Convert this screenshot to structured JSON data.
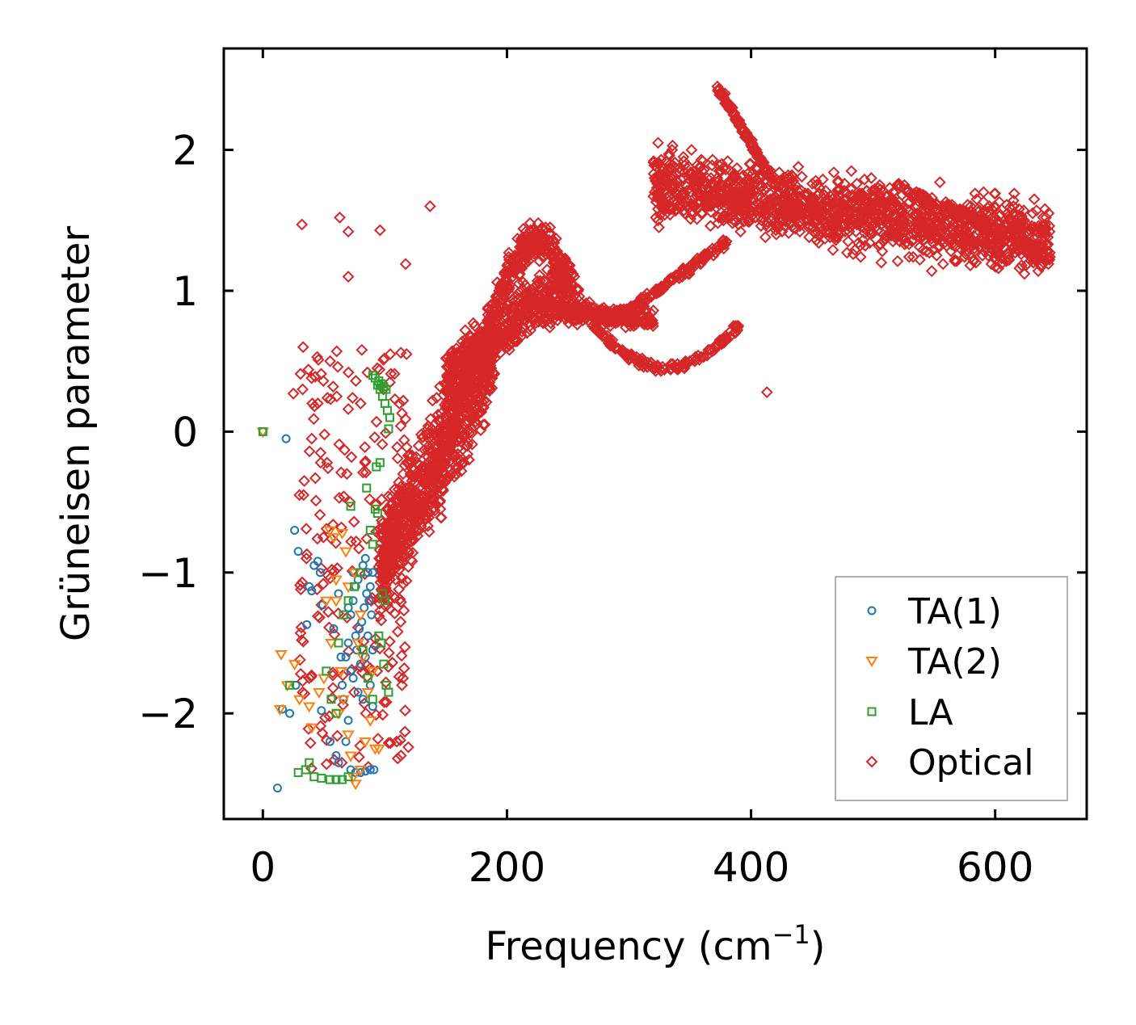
{
  "chart_data": {
    "type": "scatter",
    "title": "",
    "xlabel": "Frequency (cm",
    "xlabel_sup": "−1",
    "xlabel_end": ")",
    "ylabel": "Grüneisen parameter",
    "xlim": [
      -32,
      675
    ],
    "ylim": [
      -2.75,
      2.72
    ],
    "x_ticks": [
      0,
      200,
      400,
      600
    ],
    "x_tick_labels": [
      "0",
      "200",
      "400",
      "600"
    ],
    "y_ticks": [
      -2,
      -1,
      0,
      1,
      2
    ],
    "y_tick_labels": [
      "−2",
      "−1",
      "0",
      "1",
      "2"
    ],
    "legend_position": "lower-right",
    "series": [
      {
        "name": "TA(1)",
        "marker": "circle",
        "color": "#1f77b4",
        "points": [
          [
            0,
            0
          ],
          [
            19,
            -0.05
          ],
          [
            26,
            -0.7
          ],
          [
            29,
            -0.85
          ],
          [
            36,
            -1.37
          ],
          [
            38,
            -1.1
          ],
          [
            40,
            -1.13
          ],
          [
            42,
            -0.95
          ],
          [
            45,
            -0.92
          ],
          [
            47,
            -1.0
          ],
          [
            49,
            -1.23
          ],
          [
            12,
            -2.53
          ],
          [
            16,
            -1.97
          ],
          [
            22,
            -2.0
          ],
          [
            27,
            -1.8
          ],
          [
            48,
            -1.98
          ],
          [
            55,
            -2.2
          ],
          [
            60,
            -2.3
          ],
          [
            62,
            -2.35
          ],
          [
            65,
            -1.8
          ],
          [
            68,
            -1.6
          ],
          [
            70,
            -1.5
          ],
          [
            72,
            -1.3
          ],
          [
            74,
            -1.2
          ],
          [
            76,
            -1.1
          ],
          [
            78,
            -1.05
          ],
          [
            80,
            -1.0
          ],
          [
            82,
            -0.95
          ],
          [
            84,
            -0.9
          ],
          [
            86,
            -1.0
          ],
          [
            88,
            -1.1
          ],
          [
            90,
            -1.0
          ],
          [
            66,
            -1.9
          ],
          [
            70,
            -2.05
          ],
          [
            74,
            -1.75
          ],
          [
            77,
            -1.55
          ],
          [
            79,
            -1.4
          ],
          [
            81,
            -1.35
          ],
          [
            83,
            -1.25
          ],
          [
            85,
            -1.15
          ],
          [
            87,
            -1.2
          ],
          [
            89,
            -1.3
          ],
          [
            72,
            -1.7
          ],
          [
            76,
            -1.45
          ],
          [
            80,
            -1.65
          ],
          [
            84,
            -1.6
          ],
          [
            88,
            -1.8
          ],
          [
            90,
            -1.95
          ],
          [
            68,
            -2.2
          ],
          [
            72,
            -2.4
          ],
          [
            76,
            -2.42
          ],
          [
            80,
            -2.42
          ],
          [
            84,
            -2.41
          ],
          [
            88,
            -2.4
          ],
          [
            91,
            -2.4
          ],
          [
            78,
            -1.85
          ],
          [
            82,
            -1.9
          ],
          [
            70,
            -1.25
          ],
          [
            74,
            -1.0
          ],
          [
            62,
            -1.15
          ],
          [
            58,
            -1.4
          ],
          [
            64,
            -1.6
          ],
          [
            86,
            -1.45
          ],
          [
            90,
            -1.55
          ]
        ]
      },
      {
        "name": "TA(2)",
        "marker": "triangle-down",
        "color": "#ff7f0e",
        "points": [
          [
            0,
            0
          ],
          [
            14,
            -1.97
          ],
          [
            15,
            -1.58
          ],
          [
            20,
            -1.8
          ],
          [
            26,
            -1.65
          ],
          [
            30,
            -1.9
          ],
          [
            38,
            -1.95
          ],
          [
            40,
            -2.1
          ],
          [
            46,
            -1.85
          ],
          [
            50,
            -1.75
          ],
          [
            55,
            -0.7
          ],
          [
            58,
            -0.75
          ],
          [
            60,
            -1.05
          ],
          [
            65,
            -0.72
          ],
          [
            68,
            -0.85
          ],
          [
            70,
            -1.1
          ],
          [
            75,
            -1.0
          ],
          [
            64,
            -1.7
          ],
          [
            66,
            -1.9
          ],
          [
            70,
            -2.15
          ],
          [
            72,
            -2.3
          ],
          [
            76,
            -2.5
          ],
          [
            80,
            -2.4
          ],
          [
            84,
            -2.2
          ],
          [
            88,
            -2.05
          ],
          [
            92,
            -2.25
          ],
          [
            95,
            -2.25
          ],
          [
            78,
            -1.5
          ],
          [
            80,
            -1.3
          ],
          [
            82,
            -1.6
          ],
          [
            60,
            -1.2
          ],
          [
            56,
            -1.5
          ],
          [
            52,
            -1.2
          ],
          [
            62,
            -2.0
          ],
          [
            74,
            -2.45
          ],
          [
            86,
            -1.85
          ],
          [
            90,
            -1.7
          ]
        ]
      },
      {
        "name": "LA",
        "marker": "square",
        "color": "#2ca02c",
        "points": [
          [
            0,
            0
          ],
          [
            22,
            -1.8
          ],
          [
            29,
            -2.42
          ],
          [
            35,
            -2.4
          ],
          [
            38,
            -2.35
          ],
          [
            42,
            -2.45
          ],
          [
            48,
            -2.46
          ],
          [
            55,
            -2.47
          ],
          [
            60,
            -2.47
          ],
          [
            65,
            -2.47
          ],
          [
            70,
            -2.45
          ],
          [
            52,
            -1.7
          ],
          [
            56,
            -1.9
          ],
          [
            60,
            -2.0
          ],
          [
            62,
            -1.5
          ],
          [
            66,
            -1.3
          ],
          [
            70,
            -1.2
          ],
          [
            72,
            -0.53
          ],
          [
            75,
            -1.1
          ],
          [
            80,
            -1.0
          ],
          [
            85,
            -0.4
          ],
          [
            88,
            -0.7
          ],
          [
            90,
            -0.8
          ],
          [
            92,
            -0.55
          ],
          [
            94,
            -0.58
          ],
          [
            96,
            -0.22
          ],
          [
            98,
            -1.15
          ],
          [
            100,
            -1.2
          ],
          [
            93,
            -0.25
          ],
          [
            95,
            -1.45
          ],
          [
            97,
            -1.5
          ],
          [
            99,
            -1.65
          ],
          [
            101,
            -1.8
          ],
          [
            103,
            -1.85
          ],
          [
            90,
            0.4
          ],
          [
            92,
            0.38
          ],
          [
            94,
            0.33
          ],
          [
            96,
            0.3
          ],
          [
            98,
            0.25
          ],
          [
            100,
            0.2
          ],
          [
            102,
            0.15
          ],
          [
            104,
            0.1
          ],
          [
            103,
            0.02
          ],
          [
            95,
            0.36
          ],
          [
            97,
            0.34
          ],
          [
            99,
            0.32
          ],
          [
            101,
            0.3
          ],
          [
            90,
            -1.9
          ],
          [
            86,
            -1.75
          ],
          [
            82,
            -1.55
          ]
        ]
      },
      {
        "name": "Optical",
        "marker": "diamond",
        "color": "#d62728",
        "points": []
      }
    ]
  },
  "legend": {
    "items": [
      {
        "label": "TA(1)"
      },
      {
        "label": "TA(2)"
      },
      {
        "label": "LA"
      },
      {
        "label": "Optical"
      }
    ]
  }
}
